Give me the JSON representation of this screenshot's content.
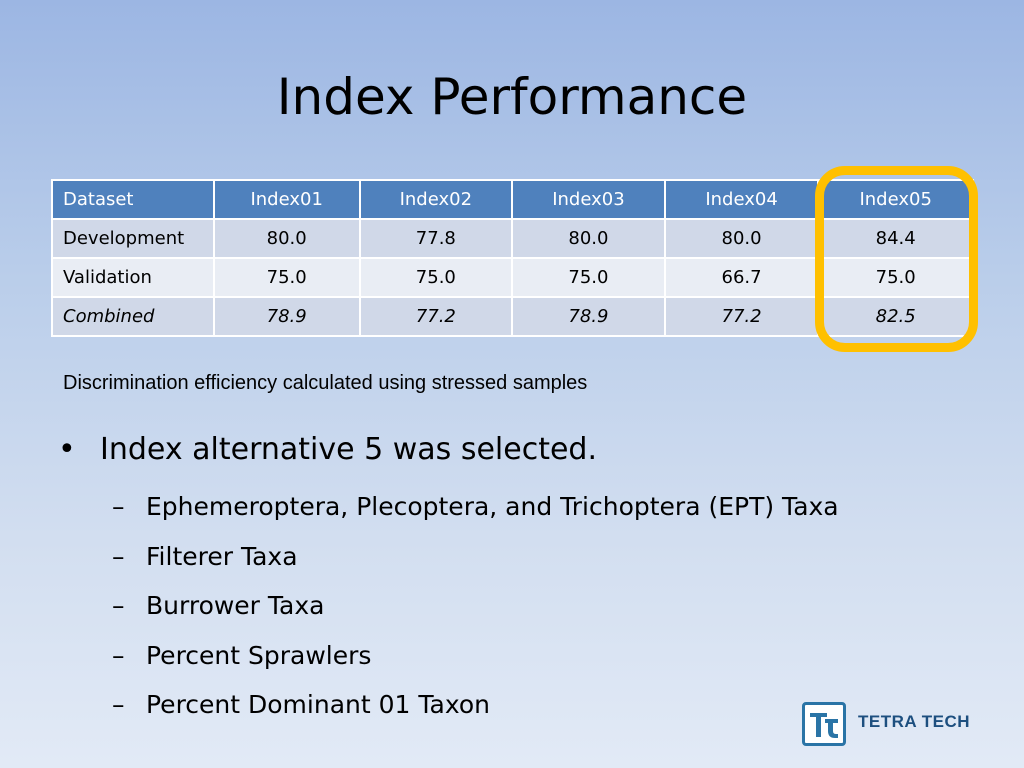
{
  "slide": {
    "title": "Index Performance",
    "caption": "Discrimination efficiency calculated using stressed samples",
    "bullet": "Index alternative 5 was selected.",
    "bullet_marker": "•",
    "sub_marker": "–",
    "sub_items": [
      "Ephemeroptera, Plecoptera, and Trichoptera (EPT) Taxa",
      "Filterer Taxa",
      "Burrower Taxa",
      "Percent Sprawlers",
      "Percent Dominant 01 Taxon"
    ]
  },
  "table": {
    "headers": [
      "Dataset",
      "Index01",
      "Index02",
      "Index03",
      "Index04",
      "Index05"
    ],
    "rows": [
      [
        "Development",
        "80.0",
        "77.8",
        "80.0",
        "80.0",
        "84.4"
      ],
      [
        "Validation",
        "75.0",
        "75.0",
        "75.0",
        "66.7",
        "75.0"
      ],
      [
        "Combined",
        "78.9",
        "77.2",
        "78.9",
        "77.2",
        "82.5"
      ]
    ],
    "highlighted_column": "Index05"
  },
  "logo": {
    "text": "TETRA TECH"
  },
  "colors": {
    "header_bg": "#4f81bd",
    "row_dark": "#d0d8e8",
    "row_light": "#e9edf4",
    "highlight": "#ffc000",
    "logo": "#2a74a6"
  }
}
